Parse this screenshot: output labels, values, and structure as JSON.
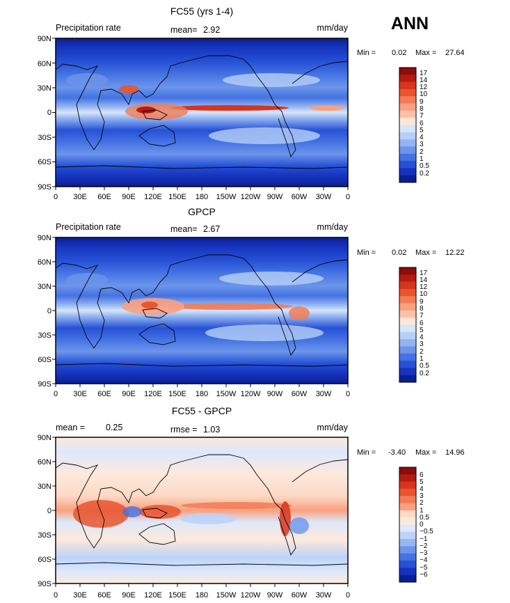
{
  "header": {
    "season": "ANN"
  },
  "chart_data": [
    {
      "type": "heatmap",
      "title": "FC55 (yrs 1-4)",
      "left_label": "Precipitation rate",
      "mean_label": "mean=",
      "mean_value": "2.92",
      "units": "mm/day",
      "min_max": {
        "min_label": "Min =",
        "min": "0.02",
        "max_label": "Max =",
        "max": "27.64"
      },
      "y_ticks": [
        "90N",
        "60N",
        "30N",
        "0",
        "30S",
        "60S",
        "90S"
      ],
      "x_ticks": [
        "0",
        "30E",
        "60E",
        "90E",
        "120E",
        "150E",
        "180",
        "150W",
        "120W",
        "90W",
        "60W",
        "30W",
        "0"
      ],
      "colorbar": {
        "labels": [
          "17",
          "14",
          "12",
          "10",
          "9",
          "8",
          "7",
          "6",
          "5",
          "4",
          "3",
          "2",
          "1",
          "0.5",
          "0.2"
        ],
        "colors": [
          "#8b0d0d",
          "#b51b10",
          "#d8341c",
          "#e8552f",
          "#f27c55",
          "#f9a07f",
          "#fcc2a8",
          "#fde6d8",
          "#d7e5fb",
          "#b6cff8",
          "#92b4f1",
          "#6c95ea",
          "#4472e2",
          "#2651d6",
          "#1533bd",
          "#0a1f93"
        ]
      }
    },
    {
      "type": "heatmap",
      "title": "GPCP",
      "left_label": "Precipitation rate",
      "mean_label": "mean=",
      "mean_value": "2.67",
      "units": "mm/day",
      "min_max": {
        "min_label": "Min =",
        "min": "0.02",
        "max_label": "Max =",
        "max": "12.22"
      },
      "y_ticks": [
        "90N",
        "60N",
        "30N",
        "0",
        "30S",
        "60S",
        "90S"
      ],
      "x_ticks": [
        "0",
        "30E",
        "60E",
        "90E",
        "120E",
        "150E",
        "180",
        "150W",
        "120W",
        "90W",
        "60W",
        "30W",
        "0"
      ],
      "colorbar": {
        "labels": [
          "17",
          "14",
          "12",
          "10",
          "9",
          "8",
          "7",
          "6",
          "5",
          "4",
          "3",
          "2",
          "1",
          "0.5",
          "0.2"
        ],
        "colors": [
          "#8b0d0d",
          "#b51b10",
          "#d8341c",
          "#e8552f",
          "#f27c55",
          "#f9a07f",
          "#fcc2a8",
          "#fde6d8",
          "#d7e5fb",
          "#b6cff8",
          "#92b4f1",
          "#6c95ea",
          "#4472e2",
          "#2651d6",
          "#1533bd",
          "#0a1f93"
        ]
      }
    },
    {
      "type": "heatmap",
      "title": "FC55 - GPCP",
      "left_label": "mean =",
      "left_value": "0.25",
      "mean_label": "rmse =",
      "mean_value": "1.03",
      "units": "mm/day",
      "min_max": {
        "min_label": "Min =",
        "min": "-3.40",
        "max_label": "Max =",
        "max": "14.96"
      },
      "y_ticks": [
        "90N",
        "60N",
        "30N",
        "0",
        "30S",
        "60S",
        "90S"
      ],
      "x_ticks": [
        "0",
        "30E",
        "60E",
        "90E",
        "120E",
        "150E",
        "180",
        "150W",
        "120W",
        "90W",
        "60W",
        "30W",
        "0"
      ],
      "colorbar": {
        "labels": [
          "6",
          "5",
          "4",
          "3",
          "2",
          "1",
          "0.5",
          "0",
          "−0.5",
          "−1",
          "−2",
          "−3",
          "−4",
          "−5",
          "−6"
        ],
        "colors": [
          "#8b0d0d",
          "#b51b10",
          "#d8341c",
          "#e8552f",
          "#f27c55",
          "#f9a07f",
          "#fdd9c6",
          "#fde9dc",
          "#dde8fb",
          "#bcd3f8",
          "#96b7f1",
          "#6c95ea",
          "#4472e2",
          "#2651d6",
          "#1533bd",
          "#0a1f93"
        ]
      }
    }
  ]
}
